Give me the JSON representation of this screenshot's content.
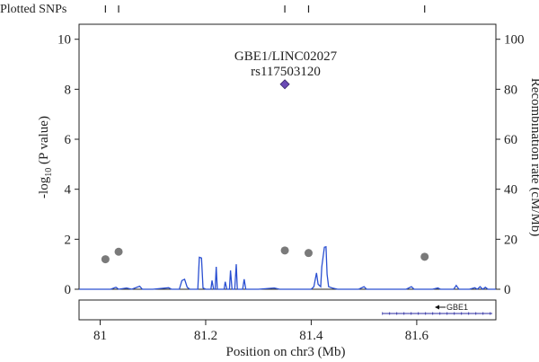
{
  "chart_data": {
    "type": "scatter",
    "snp_track_label": "Plotted SNPs",
    "xlabel_prefix": "Position on chr3 (Mb)",
    "ylabel_left": {
      "main": "-log",
      "sub": "10",
      "rest": " (P value)"
    },
    "ylabel_right": "Recombination rate (cM/Mb)",
    "xlim": [
      80.96,
      81.75
    ],
    "ylim_left": [
      0,
      10.6
    ],
    "ylim_right": [
      0,
      106
    ],
    "x_ticks": [
      "81",
      "81.2",
      "81.4",
      "81.6"
    ],
    "x_tick_values": [
      81.0,
      81.2,
      81.4,
      81.6
    ],
    "y_left_ticks": [
      "0",
      "2",
      "4",
      "6",
      "8",
      "10"
    ],
    "y_left_tick_values": [
      0,
      2,
      4,
      6,
      8,
      10
    ],
    "y_right_ticks": [
      "0",
      "20",
      "40",
      "60",
      "80",
      "100"
    ],
    "y_right_tick_values": [
      0,
      20,
      40,
      60,
      80,
      100
    ],
    "lead_snp": {
      "label_gene": "GBE1/LINC02027",
      "label_rsid": "rs117503120",
      "x": 81.35,
      "y": 8.2,
      "color": "#6a4ab5"
    },
    "snps": [
      {
        "x": 81.01,
        "y": 1.2
      },
      {
        "x": 81.035,
        "y": 1.5
      },
      {
        "x": 81.35,
        "y": 1.55
      },
      {
        "x": 81.395,
        "y": 1.45
      },
      {
        "x": 81.615,
        "y": 1.3
      }
    ],
    "snp_track_positions": [
      81.01,
      81.035,
      81.35,
      81.395,
      81.615
    ],
    "snp_color": "#7a7a7a",
    "recombination_color": "#2a4fd1",
    "recombination": [
      [
        80.96,
        0
      ],
      [
        81.02,
        0
      ],
      [
        81.03,
        0.8
      ],
      [
        81.035,
        0
      ],
      [
        81.05,
        0.5
      ],
      [
        81.06,
        0
      ],
      [
        81.075,
        1.2
      ],
      [
        81.08,
        0
      ],
      [
        81.1,
        0
      ],
      [
        81.13,
        0.6
      ],
      [
        81.135,
        0
      ],
      [
        81.15,
        0
      ],
      [
        81.155,
        3.5
      ],
      [
        81.16,
        4.0
      ],
      [
        81.165,
        0.8
      ],
      [
        81.17,
        0
      ],
      [
        81.185,
        0
      ],
      [
        81.188,
        12.8
      ],
      [
        81.192,
        12.5
      ],
      [
        81.195,
        0.5
      ],
      [
        81.2,
        0
      ],
      [
        81.21,
        0
      ],
      [
        81.212,
        3.5
      ],
      [
        81.215,
        0
      ],
      [
        81.218,
        0
      ],
      [
        81.22,
        9.0
      ],
      [
        81.222,
        0
      ],
      [
        81.235,
        0
      ],
      [
        81.237,
        3.0
      ],
      [
        81.24,
        0
      ],
      [
        81.245,
        0
      ],
      [
        81.247,
        7.5
      ],
      [
        81.25,
        0
      ],
      [
        81.255,
        0
      ],
      [
        81.258,
        10.0
      ],
      [
        81.26,
        0
      ],
      [
        81.27,
        0
      ],
      [
        81.273,
        4.0
      ],
      [
        81.276,
        0
      ],
      [
        81.3,
        0
      ],
      [
        81.33,
        0.5
      ],
      [
        81.34,
        0
      ],
      [
        81.4,
        0
      ],
      [
        81.405,
        1.0
      ],
      [
        81.41,
        6.5
      ],
      [
        81.413,
        2.0
      ],
      [
        81.418,
        1.0
      ],
      [
        81.42,
        9.0
      ],
      [
        81.425,
        16.8
      ],
      [
        81.428,
        17.0
      ],
      [
        81.43,
        6.0
      ],
      [
        81.433,
        1.0
      ],
      [
        81.44,
        0.5
      ],
      [
        81.45,
        0
      ],
      [
        81.49,
        0
      ],
      [
        81.5,
        1.0
      ],
      [
        81.505,
        0
      ],
      [
        81.58,
        0
      ],
      [
        81.59,
        1.0
      ],
      [
        81.595,
        0
      ],
      [
        81.63,
        0
      ],
      [
        81.64,
        0.5
      ],
      [
        81.645,
        0
      ],
      [
        81.67,
        0
      ],
      [
        81.675,
        1.5
      ],
      [
        81.68,
        0
      ],
      [
        81.7,
        0
      ],
      [
        81.71,
        0.6
      ],
      [
        81.715,
        0
      ],
      [
        81.72,
        1.0
      ],
      [
        81.725,
        0
      ],
      [
        81.73,
        0.8
      ],
      [
        81.735,
        0
      ],
      [
        81.75,
        0
      ]
    ],
    "gene": {
      "name": "GBE1",
      "x_start": 81.535,
      "x_end": 81.75,
      "direction": "left"
    }
  }
}
